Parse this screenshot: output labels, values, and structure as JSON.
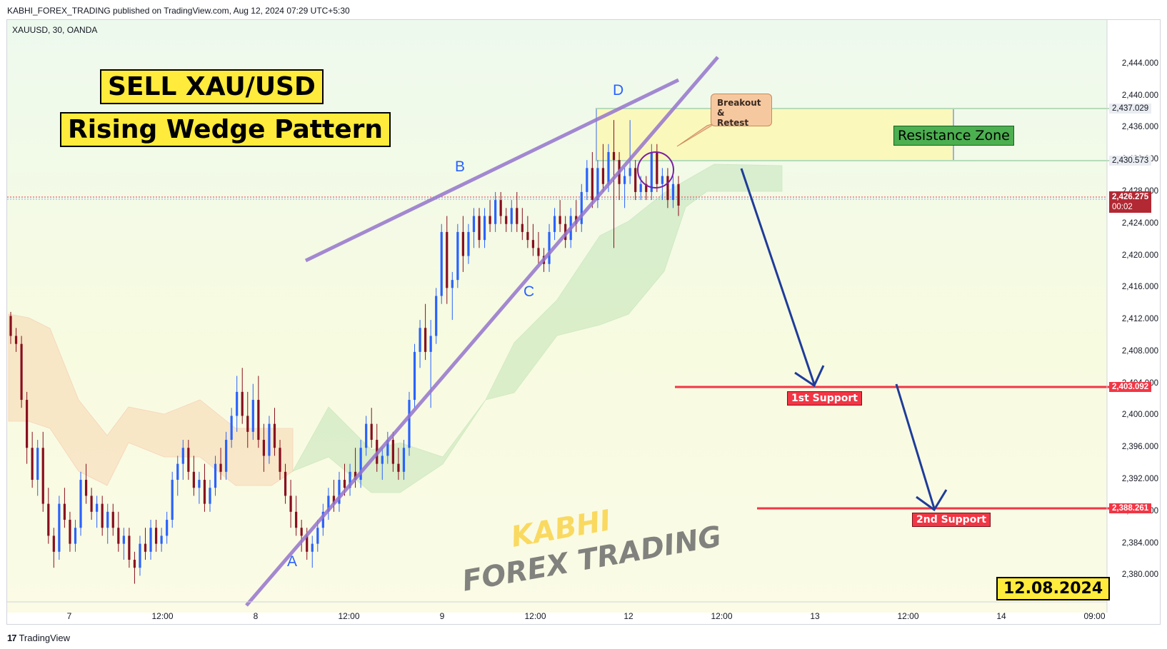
{
  "header": {
    "published_text": "KABHI_FOREX_TRADING published on TradingView.com, Aug 12, 2024 07:29 UTC+5:30"
  },
  "symbol_line": "XAUUSD, 30, OANDA",
  "titles": {
    "line1": "SELL XAU/USD",
    "line2": "Rising Wedge Pattern"
  },
  "date_badge": "12.08.2024",
  "annotations": {
    "resistance_zone": "Resistance Zone",
    "breakout": [
      "Breakout &",
      "Retest"
    ],
    "support1": "1st Support",
    "support2": "2nd Support",
    "points": {
      "A": "A",
      "B": "B",
      "C": "C",
      "D": "D"
    }
  },
  "watermark": {
    "line1": "KABHI",
    "line2": "FOREX TRADING"
  },
  "footer": {
    "logo_mark": "17",
    "logo_text": "TradingView"
  },
  "price_axis": {
    "ticks": [
      "2,444.000",
      "2,440.000",
      "2,436.000",
      "2,432.000",
      "2,428.000",
      "2,424.000",
      "2,420.000",
      "2,416.000",
      "2,412.000",
      "2,408.000",
      "2,404.000",
      "2,400.000",
      "2,396.000",
      "2,392.000",
      "2,388.000",
      "2,384.000",
      "2,380.000"
    ],
    "tags": {
      "resistance_top": "2,437.029",
      "resistance_bottom": "2,430.573",
      "current_price": "2,426.275",
      "countdown": "00:02",
      "support1": "2,403.092",
      "support2": "2,388.261"
    }
  },
  "time_axis": {
    "ticks": [
      "7",
      "12:00",
      "8",
      "12:00",
      "9",
      "12:00",
      "12",
      "12:00",
      "13",
      "12:00",
      "14",
      "09:00"
    ]
  },
  "colors": {
    "bull": "#2962ff",
    "bear": "#880e1f",
    "wedge": "#7e57c2",
    "support": "#f23645",
    "arrow": "#1f3c9a"
  },
  "chart_data": {
    "type": "candlestick",
    "symbol": "XAUUSD",
    "timeframe": "30",
    "ylim": [
      2377,
      2448
    ],
    "candles": [
      [
        2412.5,
        2413,
        2409,
        2410
      ],
      [
        2410,
        2411,
        2408,
        2409
      ],
      [
        2409,
        2410,
        2401,
        2402
      ],
      [
        2402,
        2403,
        2394,
        2396
      ],
      [
        2396,
        2398,
        2391,
        2392
      ],
      [
        2392,
        2397,
        2390,
        2396
      ],
      [
        2396,
        2398,
        2388,
        2389
      ],
      [
        2389,
        2391,
        2384,
        2385
      ],
      [
        2385,
        2386,
        2381,
        2383
      ],
      [
        2383,
        2390,
        2382,
        2389
      ],
      [
        2389,
        2391,
        2386,
        2387
      ],
      [
        2387,
        2388,
        2383,
        2384
      ],
      [
        2384,
        2387,
        2383,
        2386
      ],
      [
        2386,
        2393,
        2385,
        2392
      ],
      [
        2392,
        2394,
        2389,
        2390
      ],
      [
        2390,
        2391,
        2387,
        2388
      ],
      [
        2388,
        2390,
        2386,
        2389
      ],
      [
        2389,
        2390,
        2385,
        2386
      ],
      [
        2386,
        2389,
        2384,
        2388
      ],
      [
        2388,
        2389,
        2385,
        2386
      ],
      [
        2386,
        2388,
        2383,
        2384
      ],
      [
        2384,
        2386,
        2382,
        2385
      ],
      [
        2385,
        2386,
        2381,
        2382
      ],
      [
        2382,
        2383,
        2379,
        2381
      ],
      [
        2381,
        2385,
        2380,
        2384
      ],
      [
        2384,
        2386,
        2382,
        2383
      ],
      [
        2383,
        2387,
        2382,
        2386
      ],
      [
        2386,
        2387,
        2383,
        2384
      ],
      [
        2384,
        2386,
        2383,
        2385
      ],
      [
        2385,
        2388,
        2384,
        2387
      ],
      [
        2387,
        2393,
        2386,
        2392
      ],
      [
        2392,
        2395,
        2390,
        2394
      ],
      [
        2394,
        2397,
        2392,
        2396
      ],
      [
        2396,
        2397,
        2392,
        2393
      ],
      [
        2393,
        2395,
        2390,
        2391
      ],
      [
        2391,
        2393,
        2389,
        2392
      ],
      [
        2392,
        2394,
        2388,
        2389
      ],
      [
        2389,
        2392,
        2388,
        2391
      ],
      [
        2391,
        2395,
        2390,
        2394
      ],
      [
        2394,
        2396,
        2392,
        2393
      ],
      [
        2393,
        2398,
        2392,
        2397
      ],
      [
        2397,
        2401,
        2396,
        2400
      ],
      [
        2400,
        2405,
        2398,
        2403
      ],
      [
        2403,
        2406,
        2399,
        2400
      ],
      [
        2400,
        2403,
        2396,
        2398
      ],
      [
        2398,
        2404,
        2397,
        2402
      ],
      [
        2402,
        2405,
        2396,
        2397
      ],
      [
        2397,
        2399,
        2393,
        2395
      ],
      [
        2395,
        2400,
        2394,
        2399
      ],
      [
        2399,
        2401,
        2395,
        2396
      ],
      [
        2396,
        2397,
        2392,
        2393
      ],
      [
        2393,
        2394,
        2389,
        2390
      ],
      [
        2390,
        2392,
        2386,
        2388
      ],
      [
        2388,
        2390,
        2385,
        2386
      ],
      [
        2386,
        2387,
        2383,
        2385
      ],
      [
        2385,
        2386,
        2382,
        2383
      ],
      [
        2383,
        2385,
        2381,
        2384
      ],
      [
        2384,
        2387,
        2383,
        2386
      ],
      [
        2386,
        2389,
        2385,
        2388
      ],
      [
        2388,
        2391,
        2387,
        2390
      ],
      [
        2390,
        2392,
        2388,
        2389
      ],
      [
        2389,
        2393,
        2388,
        2392
      ],
      [
        2392,
        2394,
        2390,
        2391
      ],
      [
        2391,
        2394,
        2390,
        2393
      ],
      [
        2393,
        2396,
        2391,
        2392
      ],
      [
        2392,
        2397,
        2391,
        2396
      ],
      [
        2396,
        2400,
        2395,
        2399
      ],
      [
        2399,
        2401,
        2396,
        2397
      ],
      [
        2397,
        2399,
        2393,
        2394
      ],
      [
        2394,
        2396,
        2392,
        2395
      ],
      [
        2395,
        2398,
        2394,
        2397
      ],
      [
        2397,
        2398,
        2393,
        2394
      ],
      [
        2394,
        2396,
        2392,
        2393
      ],
      [
        2393,
        2397,
        2392,
        2396
      ],
      [
        2396,
        2403,
        2395,
        2402
      ],
      [
        2402,
        2409,
        2401,
        2408
      ],
      [
        2408,
        2412,
        2406,
        2411
      ],
      [
        2411,
        2414,
        2407,
        2408
      ],
      [
        2408,
        2412,
        2401,
        2410
      ],
      [
        2410,
        2416,
        2409,
        2415
      ],
      [
        2415,
        2424,
        2414,
        2423
      ],
      [
        2423,
        2425,
        2414,
        2416
      ],
      [
        2416,
        2418,
        2412,
        2417
      ],
      [
        2417,
        2424,
        2416,
        2423
      ],
      [
        2423,
        2425,
        2418,
        2420
      ],
      [
        2420,
        2424,
        2419,
        2423
      ],
      [
        2423,
        2426,
        2421,
        2425
      ],
      [
        2425,
        2426,
        2421,
        2422
      ],
      [
        2422,
        2426,
        2421,
        2425
      ],
      [
        2425,
        2427,
        2423,
        2424
      ],
      [
        2424,
        2428,
        2423,
        2427
      ],
      [
        2427,
        2428,
        2424,
        2425
      ],
      [
        2425,
        2426,
        2423,
        2424
      ],
      [
        2424,
        2427,
        2423,
        2426
      ],
      [
        2426,
        2428,
        2423,
        2424
      ],
      [
        2424,
        2426,
        2422,
        2423
      ],
      [
        2423,
        2425,
        2421,
        2422
      ],
      [
        2422,
        2424,
        2420,
        2421
      ],
      [
        2421,
        2423,
        2419,
        2420
      ],
      [
        2420,
        2421,
        2418,
        2419
      ],
      [
        2419,
        2424,
        2418,
        2423
      ],
      [
        2423,
        2426,
        2422,
        2425
      ],
      [
        2425,
        2427,
        2423,
        2424
      ],
      [
        2424,
        2425,
        2421,
        2422
      ],
      [
        2422,
        2426,
        2421,
        2425
      ],
      [
        2425,
        2427,
        2423,
        2424
      ],
      [
        2424,
        2429,
        2423,
        2428
      ],
      [
        2428,
        2432,
        2427,
        2431
      ],
      [
        2431,
        2433,
        2426,
        2427
      ],
      [
        2427,
        2432,
        2426,
        2431
      ],
      [
        2431,
        2434,
        2428,
        2429
      ],
      [
        2429,
        2434,
        2428,
        2433
      ],
      [
        2433,
        2437,
        2421,
        2432
      ],
      [
        2432,
        2433,
        2427,
        2429
      ],
      [
        2429,
        2431,
        2426,
        2430
      ],
      [
        2430,
        2437,
        2429,
        2431
      ],
      [
        2431,
        2432,
        2427,
        2428
      ],
      [
        2428,
        2430,
        2427,
        2429
      ],
      [
        2429,
        2430,
        2427,
        2428
      ],
      [
        2428,
        2434,
        2427,
        2433
      ],
      [
        2433,
        2434,
        2428,
        2429
      ],
      [
        2429,
        2431,
        2427,
        2430
      ],
      [
        2430,
        2431,
        2426,
        2427
      ],
      [
        2427,
        2430,
        2426,
        2429
      ],
      [
        2429,
        2430,
        2425,
        2426.3
      ]
    ]
  }
}
